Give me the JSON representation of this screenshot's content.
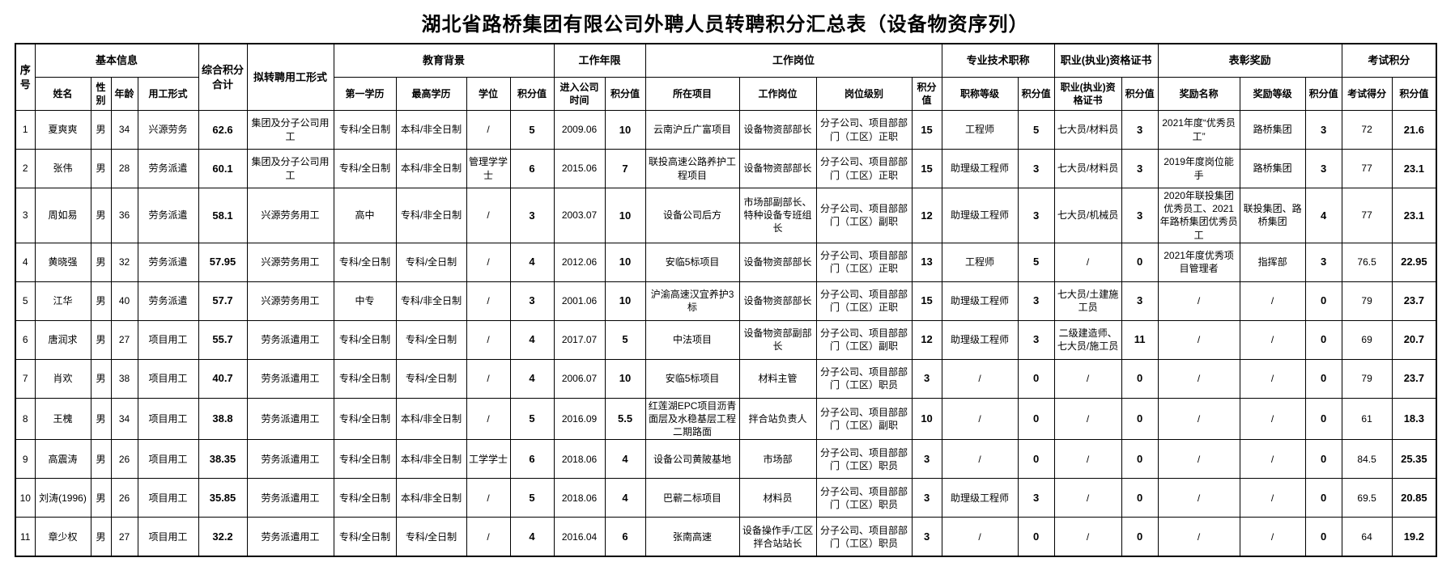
{
  "title": "湖北省路桥集团有限公司外聘人员转聘积分汇总表（设备物资序列）",
  "table": {
    "header_groups": {
      "xuhao": "序号",
      "jiben_xinxi": "基本信息",
      "zonghe_jifen_heji": "综合积分合计",
      "nizhuanpin_yonggong_xingshi": "拟转聘用工形式",
      "jiaoyu_beijing": "教育背景",
      "gongzuo_nianxian": "工作年限",
      "gongzuo_gangwei": "工作岗位",
      "zhuanye_jishu_zhicheng": "专业技术职称",
      "zhiye_zige_zhengshu": "职业(执业)资格证书",
      "biaozhang_jiangli": "表彰奖励",
      "kaoshi_jifen": "考试积分"
    },
    "sub_headers": [
      "姓名",
      "性别",
      "年龄",
      "用工形式",
      "第一学历",
      "最高学历",
      "学位",
      "积分值",
      "进入公司时间",
      "积分值",
      "所在项目",
      "工作岗位",
      "岗位级别",
      "积分值",
      "职称等级",
      "积分值",
      "职业(执业)资格证书",
      "积分值",
      "奖励名称",
      "奖励等级",
      "积分值",
      "考试得分",
      "积分值"
    ],
    "rows": [
      [
        "1",
        "夏爽爽",
        "男",
        "34",
        "兴源劳务",
        "62.6",
        "集团及分子公司用工",
        "专科/全日制",
        "本科/非全日制",
        "/",
        "5",
        "2009.06",
        "10",
        "云南沪丘广富项目",
        "设备物资部部长",
        "分子公司、项目部部门（工区）正职",
        "15",
        "工程师",
        "5",
        "七大员/材料员",
        "3",
        "2021年度“优秀员工”",
        "路桥集团",
        "3",
        "72",
        "21.6"
      ],
      [
        "2",
        "张伟",
        "男",
        "28",
        "劳务派遣",
        "60.1",
        "集团及分子公司用工",
        "专科/全日制",
        "本科/非全日制",
        "管理学学士",
        "6",
        "2015.06",
        "7",
        "联投高速公路养护工程项目",
        "设备物资部部长",
        "分子公司、项目部部门（工区）正职",
        "15",
        "助理级工程师",
        "3",
        "七大员/材料员",
        "3",
        "2019年度岗位能手",
        "路桥集团",
        "3",
        "77",
        "23.1"
      ],
      [
        "3",
        "周如易",
        "男",
        "36",
        "劳务派遣",
        "58.1",
        "兴源劳务用工",
        "高中",
        "专科/非全日制",
        "/",
        "3",
        "2003.07",
        "10",
        "设备公司后方",
        "市场部副部长、特种设备专班组长",
        "分子公司、项目部部门（工区）副职",
        "12",
        "助理级工程师",
        "3",
        "七大员/机械员",
        "3",
        "2020年联投集团优秀员工、2021年路桥集团优秀员工",
        "联投集团、路桥集团",
        "4",
        "77",
        "23.1"
      ],
      [
        "4",
        "黄晓强",
        "男",
        "32",
        "劳务派遣",
        "57.95",
        "兴源劳务用工",
        "专科/全日制",
        "专科/全日制",
        "/",
        "4",
        "2012.06",
        "10",
        "安临5标项目",
        "设备物资部部长",
        "分子公司、项目部部门（工区）正职",
        "13",
        "工程师",
        "5",
        "/",
        "0",
        "2021年度优秀项目管理者",
        "指挥部",
        "3",
        "76.5",
        "22.95"
      ],
      [
        "5",
        "江华",
        "男",
        "40",
        "劳务派遣",
        "57.7",
        "兴源劳务用工",
        "中专",
        "专科/非全日制",
        "/",
        "3",
        "2001.06",
        "10",
        "沪渝高速汉宜养护3标",
        "设备物资部部长",
        "分子公司、项目部部门（工区）正职",
        "15",
        "助理级工程师",
        "3",
        "七大员/土建施工员",
        "3",
        "/",
        "/",
        "0",
        "79",
        "23.7"
      ],
      [
        "6",
        "唐润求",
        "男",
        "27",
        "项目用工",
        "55.7",
        "劳务派遣用工",
        "专科/全日制",
        "专科/全日制",
        "/",
        "4",
        "2017.07",
        "5",
        "中法项目",
        "设备物资部副部长",
        "分子公司、项目部部门（工区）副职",
        "12",
        "助理级工程师",
        "3",
        "二级建造师、七大员/施工员",
        "11",
        "/",
        "/",
        "0",
        "69",
        "20.7"
      ],
      [
        "7",
        "肖欢",
        "男",
        "38",
        "项目用工",
        "40.7",
        "劳务派遣用工",
        "专科/全日制",
        "专科/全日制",
        "/",
        "4",
        "2006.07",
        "10",
        "安临5标项目",
        "材料主管",
        "分子公司、项目部部门（工区）职员",
        "3",
        "/",
        "0",
        "/",
        "0",
        "/",
        "/",
        "0",
        "79",
        "23.7"
      ],
      [
        "8",
        "王槐",
        "男",
        "34",
        "项目用工",
        "38.8",
        "劳务派遣用工",
        "专科/全日制",
        "本科/非全日制",
        "/",
        "5",
        "2016.09",
        "5.5",
        "红莲湖EPC项目沥青面层及水稳基层工程二期路面",
        "拌合站负责人",
        "分子公司、项目部部门（工区）副职",
        "10",
        "/",
        "0",
        "/",
        "0",
        "/",
        "/",
        "0",
        "61",
        "18.3"
      ],
      [
        "9",
        "高震涛",
        "男",
        "26",
        "项目用工",
        "38.35",
        "劳务派遣用工",
        "专科/全日制",
        "本科/非全日制",
        "工学学士",
        "6",
        "2018.06",
        "4",
        "设备公司黄陂基地",
        "市场部",
        "分子公司、项目部部门（工区）职员",
        "3",
        "/",
        "0",
        "/",
        "0",
        "/",
        "/",
        "0",
        "84.5",
        "25.35"
      ],
      [
        "10",
        "刘涛(1996)",
        "男",
        "26",
        "项目用工",
        "35.85",
        "劳务派遣用工",
        "专科/全日制",
        "本科/非全日制",
        "/",
        "5",
        "2018.06",
        "4",
        "巴蕲二标项目",
        "材料员",
        "分子公司、项目部部门（工区）职员",
        "3",
        "助理级工程师",
        "3",
        "/",
        "0",
        "/",
        "/",
        "0",
        "69.5",
        "20.85"
      ],
      [
        "11",
        "章少权",
        "男",
        "27",
        "项目用工",
        "32.2",
        "劳务派遣用工",
        "专科/全日制",
        "专科/全日制",
        "/",
        "4",
        "2016.04",
        "6",
        "张南高速",
        "设备操作手/工区拌合站站长",
        "分子公司、项目部部门（工区）职员",
        "3",
        "/",
        "0",
        "/",
        "0",
        "/",
        "/",
        "0",
        "64",
        "19.2"
      ]
    ]
  }
}
